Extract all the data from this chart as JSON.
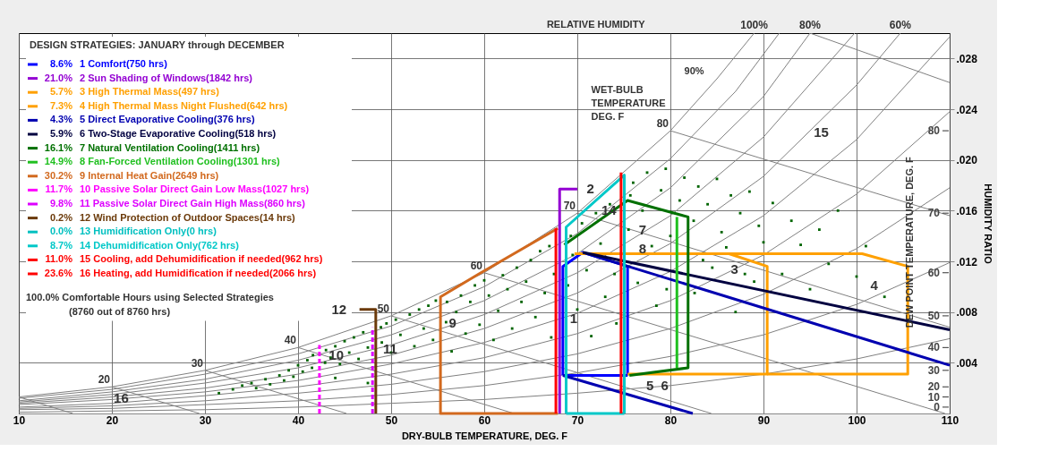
{
  "chart_data": {
    "type": "line",
    "xlabel": "DRY-BULB TEMPERATURE, DEG. F",
    "ylabel": "HUMIDITY RATIO",
    "y2label": "DEW POINT TEMPERATURE, DEG. F",
    "legend_title": "DESIGN STRATEGIES:  JANUARY through DECEMBER",
    "xlim": [
      10,
      110
    ],
    "xticks": [
      10,
      20,
      30,
      40,
      50,
      60,
      70,
      80,
      90,
      100,
      110
    ],
    "ylim": [
      0,
      0.03
    ],
    "yticks": [
      {
        "value": 0.004,
        "label": ".004"
      },
      {
        "value": 0.008,
        "label": ".008"
      },
      {
        "value": 0.012,
        "label": ".012"
      },
      {
        "value": 0.016,
        "label": ".016"
      },
      {
        "value": 0.02,
        "label": ".020"
      },
      {
        "value": 0.024,
        "label": ".024"
      },
      {
        "value": 0.028,
        "label": ".028"
      }
    ],
    "grid": true,
    "legend": "top left",
    "annotations": [
      "RELATIVE HUMIDITY",
      "90%",
      "WET-BULB\nTEMPERATURE\nDEG. F",
      "100.0%  Comfortable Hours using Selected Strategies",
      "(8760 out of 8760 hrs)",
      "2",
      "4",
      "8",
      "12",
      "14",
      "15",
      "0",
      "10",
      "20",
      "30",
      "40",
      "50",
      "60",
      "70",
      "80",
      {
        "text": "1",
        "x": 69.6,
        "y": 0.0075
      },
      {
        "text": "3",
        "x": 86.9,
        "y": 0.0114
      },
      {
        "text": "5",
        "x": 77.8,
        "y": 0.0022
      },
      {
        "text": "6",
        "x": 79.4,
        "y": 0.0022
      },
      {
        "text": "7",
        "x": 77.0,
        "y": 0.0145
      },
      {
        "text": "9",
        "x": 56.6,
        "y": 0.0071
      },
      {
        "text": "10",
        "x": 44.1,
        "y": 0.0046
      },
      {
        "text": "11",
        "x": 49.9,
        "y": 0.0051
      },
      {
        "text": "16",
        "x": 21.0,
        "y": 0.0012
      }
    ],
    "series": [
      {
        "name": "100%",
        "color": "#808080",
        "x": [
          10,
          20,
          30,
          40,
          50,
          60,
          70,
          80,
          85,
          89
        ],
        "values": [
          0.0013,
          0.0021,
          0.0034,
          0.0052,
          0.0077,
          0.0111,
          0.0158,
          0.0223,
          0.0264,
          0.03
        ]
      },
      {
        "color": "#808080",
        "x": [
          10,
          15.8
        ],
        "values": [
          0.0013,
          0
        ]
      },
      {
        "color": "#808080",
        "x": [
          10,
          20,
          30,
          40,
          50,
          60,
          70,
          80,
          87,
          91.7
        ],
        "values": [
          0.0012,
          0.0019,
          0.0031,
          0.0047,
          0.0069,
          0.01,
          0.0142,
          0.0201,
          0.0254,
          0.03
        ]
      },
      {
        "name": "80%",
        "color": "#808080",
        "x": [
          10,
          20,
          30,
          40,
          50,
          60,
          70,
          80,
          90,
          95
        ],
        "values": [
          0.001,
          0.0017,
          0.0027,
          0.0042,
          0.0062,
          0.0089,
          0.0126,
          0.0178,
          0.025,
          0.03
        ]
      },
      {
        "color": "#808080",
        "x": [
          10,
          20,
          30,
          40,
          50,
          60,
          70,
          80,
          90,
          99.8
        ],
        "values": [
          0.0009,
          0.0015,
          0.0024,
          0.0036,
          0.0054,
          0.0078,
          0.0111,
          0.0156,
          0.0218,
          0.03
        ]
      },
      {
        "name": "60%",
        "color": "#808080",
        "x": [
          10,
          20,
          30,
          40,
          50,
          60,
          70,
          80,
          90,
          100,
          104.7
        ],
        "values": [
          0.0008,
          0.0013,
          0.002,
          0.0031,
          0.0046,
          0.0067,
          0.0095,
          0.0134,
          0.0187,
          0.0259,
          0.03
        ]
      },
      {
        "color": "#808080",
        "x": [
          10,
          20,
          30,
          40,
          50,
          60,
          70,
          80,
          90,
          100,
          110
        ],
        "values": [
          0.0007,
          0.0011,
          0.0017,
          0.0026,
          0.0039,
          0.0056,
          0.0079,
          0.0112,
          0.0156,
          0.0216,
          0.0297
        ]
      },
      {
        "color": "#808080",
        "x": [
          10,
          20,
          30,
          40,
          50,
          60,
          70,
          80,
          90,
          100,
          110
        ],
        "values": [
          0.0005,
          0.0008,
          0.0014,
          0.0021,
          0.0031,
          0.0044,
          0.0063,
          0.0089,
          0.0125,
          0.0173,
          0.0238
        ]
      },
      {
        "color": "#808080",
        "x": [
          10,
          20,
          30,
          40,
          50,
          60,
          70,
          80,
          90,
          100,
          110
        ],
        "values": [
          0.0004,
          0.0006,
          0.001,
          0.0016,
          0.0023,
          0.0033,
          0.0047,
          0.0067,
          0.0094,
          0.013,
          0.0178
        ]
      },
      {
        "color": "#808080",
        "x": [
          10,
          20,
          30,
          40,
          50,
          60,
          70,
          80,
          90,
          100,
          110
        ],
        "values": [
          0.0003,
          0.0004,
          0.0007,
          0.001,
          0.0015,
          0.0022,
          0.0032,
          0.0045,
          0.0062,
          0.0086,
          0.0119
        ]
      },
      {
        "color": "#808080",
        "x": [
          10,
          20,
          30,
          40,
          50,
          60,
          70,
          80,
          90,
          100,
          110
        ],
        "values": [
          0.0001,
          0.0002,
          0.0003,
          0.0005,
          0.0008,
          0.0011,
          0.0016,
          0.0022,
          0.0031,
          0.0043,
          0.0059
        ]
      },
      {
        "name": "20",
        "color": "#808080",
        "x": [
          20,
          29.4
        ],
        "values": [
          0.0021,
          0
        ]
      },
      {
        "name": "30",
        "color": "#808080",
        "x": [
          30,
          45.2
        ],
        "values": [
          0.0034,
          0
        ]
      },
      {
        "name": "40",
        "color": "#808080",
        "x": [
          40,
          63.2
        ],
        "values": [
          0.0052,
          0
        ]
      },
      {
        "name": "50",
        "color": "#808080",
        "x": [
          50,
          84.4
        ],
        "values": [
          0.0077,
          0
        ]
      },
      {
        "name": "60",
        "color": "#808080",
        "x": [
          60,
          109.5
        ],
        "values": [
          0.0111,
          0
        ]
      },
      {
        "name": "70",
        "color": "#808080",
        "x": [
          70,
          110
        ],
        "values": [
          0.0158,
          0.0068
        ]
      },
      {
        "name": "80",
        "color": "#808080",
        "x": [
          80,
          110
        ],
        "values": [
          0.0223,
          0.0156
        ]
      },
      {
        "color": "#808080",
        "x": [
          95,
          110
        ],
        "values": [
          0.03,
          0.0261
        ]
      },
      {
        "type": "scatter",
        "marker": "square",
        "color": "#006400",
        "x": [
          31.5,
          33,
          34,
          35,
          35.5,
          36.5,
          37,
          38,
          38.5,
          39,
          39.5,
          40,
          40.5,
          41,
          41.5,
          41.6,
          42.9,
          43,
          43.5,
          44,
          44,
          44.5,
          45,
          45.5,
          46,
          46.5,
          47,
          47.5,
          47.5,
          48.9,
          49,
          49.5,
          50,
          50.5,
          51,
          52,
          52.5,
          53,
          53.5,
          54,
          54.5,
          54.8,
          55.9,
          56,
          56.5,
          57,
          57.5,
          58,
          58.5,
          59,
          59.5,
          60,
          60.5,
          61,
          61.5,
          62,
          62.5,
          63,
          63.5,
          64,
          64.5,
          65,
          65.5,
          66,
          66.5,
          67,
          67.5,
          67.2,
          69.3,
          69,
          69.5,
          70,
          70.5,
          71,
          71.5,
          72,
          72.5,
          73,
          73.5,
          74,
          74.2,
          75.7,
          75.5,
          76,
          76.5,
          77,
          77.5,
          78,
          78.5,
          79,
          79.5,
          80,
          79.6,
          81,
          81.5,
          82.6,
          82.5,
          83,
          83.5,
          84,
          84.5,
          85,
          85.5,
          86,
          86.5,
          87,
          87.5,
          88,
          88.5,
          89,
          89.5,
          90,
          91,
          92,
          93,
          94,
          95,
          96,
          97,
          98,
          100,
          101,
          103
        ],
        "values": [
          0.0016,
          0.0019,
          0.0022,
          0.0024,
          0.002,
          0.0027,
          0.0023,
          0.003,
          0.0026,
          0.0034,
          0.0029,
          0.0038,
          0.0033,
          0.0042,
          0.0036,
          0.0046,
          0.004,
          0.005,
          0.0044,
          0.0053,
          0.0028,
          0.0039,
          0.0057,
          0.0048,
          0.006,
          0.0043,
          0.0064,
          0.0052,
          0.0024,
          0.0068,
          0.0056,
          0.0071,
          0.0048,
          0.0074,
          0.0062,
          0.0078,
          0.0053,
          0.0082,
          0.0067,
          0.0085,
          0.0058,
          0.0089,
          0.0072,
          0.0088,
          0.0049,
          0.008,
          0.0093,
          0.0063,
          0.0088,
          0.0101,
          0.007,
          0.0105,
          0.0093,
          0.0058,
          0.0081,
          0.0109,
          0.0098,
          0.0067,
          0.0115,
          0.0088,
          0.0104,
          0.0121,
          0.0076,
          0.0128,
          0.0095,
          0.0132,
          0.011,
          0.006,
          0.014,
          0.0101,
          0.0125,
          0.0082,
          0.015,
          0.0113,
          0.0061,
          0.0158,
          0.0134,
          0.0092,
          0.0165,
          0.011,
          0.0071,
          0.0172,
          0.0145,
          0.0182,
          0.0103,
          0.016,
          0.019,
          0.0132,
          0.0085,
          0.0176,
          0.0193,
          0.014,
          0.0098,
          0.0168,
          0.0186,
          0.0095,
          0.0152,
          0.0179,
          0.0121,
          0.0165,
          0.0115,
          0.0185,
          0.0143,
          0.0131,
          0.0172,
          0.008,
          0.0158,
          0.011,
          0.0175,
          0.0104,
          0.0148,
          0.0135,
          0.0166,
          0.011,
          0.0152,
          0.0133,
          0.0098,
          0.0145,
          0.0118,
          0.016,
          0.0108,
          0.0132,
          0.0092
        ]
      },
      {
        "name": "8.6% 1 Comfort(750 hrs)",
        "color": "#0000ff",
        "x": [
          68.45,
          68.45,
          70.6,
          75.4,
          75.4,
          null,
          75.4,
          68.45
        ],
        "values": [
          0.003,
          0.0116,
          0.0127,
          0.0116,
          0.003,
          null,
          0.003,
          0.003
        ]
      },
      {
        "name": "21.0% 2 Sun Shading of Windows(1842 hrs)",
        "color": "#9400d3",
        "x": [
          68.1,
          68.1,
          70.0
        ],
        "values": [
          0,
          0.0177,
          0.0177
        ]
      },
      {
        "name": "5.7% 3 High Thermal Mass(497 hrs)",
        "color": "#ffa000",
        "x": [
          75.4,
          90.4,
          90.4,
          86.3,
          69.7
        ],
        "values": [
          0.0031,
          0.0031,
          0.0116,
          0.0126,
          0.0126
        ]
      },
      {
        "name": "7.3% 4 High Thermal Mass Night Flushed(642 hrs)",
        "color": "#ffa000",
        "x": [
          90.4,
          105.5,
          105.5,
          100.6,
          86.3
        ],
        "values": [
          0.0031,
          0.0031,
          0.0116,
          0.0126,
          0.0126
        ]
      },
      {
        "name": "4.3% 5 Direct Evaporative Cooling(376 hrs)",
        "color": "#0000b0",
        "x": [
          70.6,
          110,
          null,
          68.45,
          82.4
        ],
        "values": [
          0.0127,
          0.0038,
          null,
          0.003,
          0
        ]
      },
      {
        "name": "5.9% 6 Two-Stage Evaporative Cooling(518 hrs)",
        "color": "#000040",
        "x": [
          70.6,
          110
        ],
        "values": [
          0.0127,
          0.0066
        ]
      },
      {
        "name": "16.1% 7 Natural Ventilation Cooling(1411 hrs)",
        "color": "#007000",
        "x": [
          68.6,
          75.4,
          81.9,
          81.9,
          75.6
        ],
        "values": [
          0.0133,
          0.0168,
          0.0155,
          0.0036,
          0.003
        ]
      },
      {
        "name": "14.9% 8 Fan-Forced Ventilation Cooling(1301 hrs)",
        "color": "#20c020",
        "x": [
          80.7,
          80.7
        ],
        "values": [
          0.0155,
          0.0036
        ]
      },
      {
        "name": "30.2% 9 Internal Heat Gain(2649 hrs)",
        "color": "#d2691e",
        "x": [
          67.9,
          55.3,
          55.3,
          59.4,
          67.9
        ],
        "values": [
          0,
          0,
          0.0092,
          0.011,
          0.0146
        ]
      },
      {
        "name": "11.7% 10 Passive Solar Direct Gain Low Mass(1027 hrs)",
        "color": "#ff00ff",
        "line_style": "dashed",
        "x": [
          42.3,
          42.3
        ],
        "values": [
          0,
          0.0054
        ]
      },
      {
        "name": "9.8% 11 Passive Solar Direct Gain High Mass(860 hrs)",
        "color": "#dd00ff",
        "line_style": "dashed",
        "x": [
          48.0,
          48.0
        ],
        "values": [
          0,
          0.0068
        ]
      },
      {
        "name": "0.2% 12 Wind Protection of Outdoor Spaces(14 hrs)",
        "color": "#6b3a0a",
        "x": [
          48.35,
          48.35,
          46.6
        ],
        "values": [
          0,
          0.0082,
          0.0082
        ]
      },
      {
        "name": "0.0% 13 Humidification Only(0 hrs)",
        "color": "#00c0c0"
      },
      {
        "name": "8.7% 14 Dehumidification Only(762 hrs)",
        "color": "#00c8c8",
        "x": [
          68.8,
          68.8,
          75.05,
          75.05,
          null,
          75.05,
          68.8
        ],
        "values": [
          0,
          0.0147,
          0.0188,
          0,
          null,
          0,
          0
        ]
      },
      {
        "name": "11.0% 15 Cooling, add Dehumidification if needed(962 hrs)",
        "color": "#ff0000",
        "x": [
          67.7,
          67.7,
          null,
          74.7,
          74.7
        ],
        "values": [
          0,
          0.0146,
          null,
          0,
          0.019
        ]
      },
      {
        "name": "23.6% 16 Heating, add Humidification if needed(2066 hrs)",
        "color": "#ff0000"
      }
    ]
  }
}
